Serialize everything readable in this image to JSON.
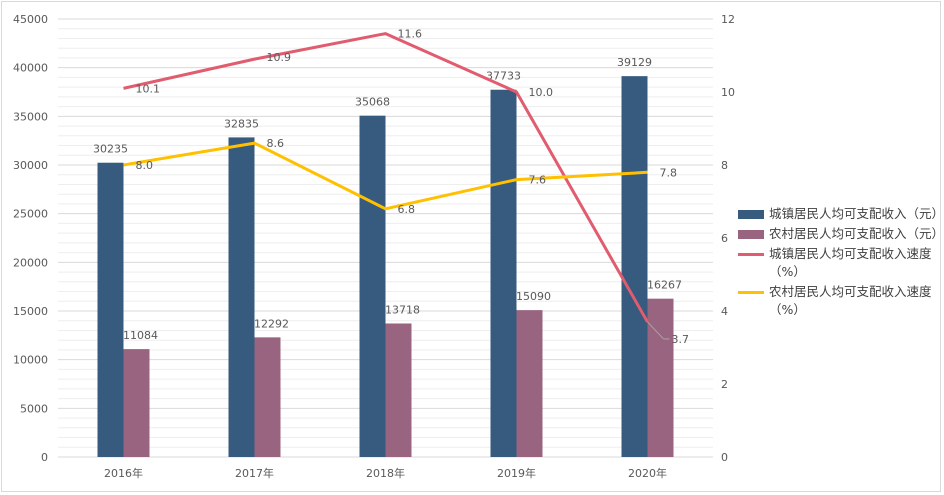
{
  "chart_data": {
    "type": "bar+line",
    "categories": [
      "2016年",
      "2017年",
      "2018年",
      "2019年",
      "2020年"
    ],
    "y_left": {
      "min": 0,
      "max": 45000,
      "ticks": [
        0,
        5000,
        10000,
        15000,
        20000,
        25000,
        30000,
        35000,
        40000,
        45000
      ]
    },
    "y_right": {
      "min": 0,
      "max": 12,
      "ticks": [
        0,
        2,
        4,
        6,
        8,
        10,
        12
      ]
    },
    "grid": true,
    "legend_position": "right",
    "series": [
      {
        "name": "城镇居民人均可支配收入（元）",
        "type": "bar",
        "axis": "left",
        "color": "#375a7f",
        "values": [
          30235,
          32835,
          35068,
          37733,
          39129
        ]
      },
      {
        "name": "农村居民人均可支配收入（元）",
        "type": "bar",
        "axis": "left",
        "color": "#98647f",
        "values": [
          11084,
          12292,
          13718,
          15090,
          16267
        ]
      },
      {
        "name": "城镇居民人均可支配收入速度（%）",
        "type": "line",
        "axis": "right",
        "color": "#e05c6e",
        "values": [
          10.1,
          10.9,
          11.6,
          10.0,
          3.7
        ]
      },
      {
        "name": "农村居民人均可支配收入速度（%）",
        "type": "line",
        "axis": "right",
        "color": "#ffc000",
        "values": [
          8.0,
          8.6,
          6.8,
          7.6,
          7.8
        ]
      }
    ]
  }
}
